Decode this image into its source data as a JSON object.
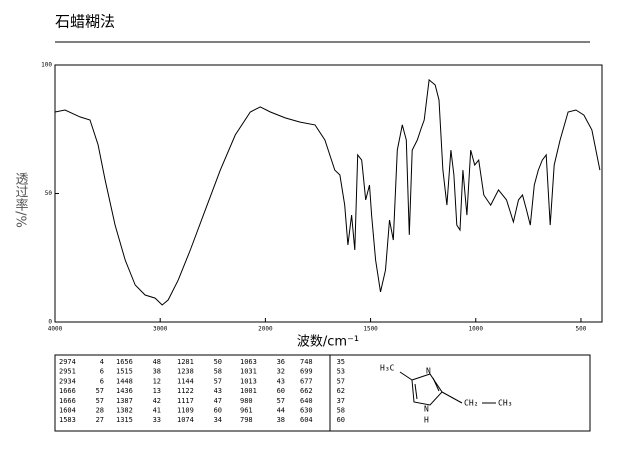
{
  "chart_data": {
    "type": "line",
    "title": "石蜡糊法",
    "x_label": "波数/cm⁻¹",
    "y_label": "透过率/%",
    "x": [
      4000,
      3905,
      3762,
      3667,
      3590,
      3524,
      3429,
      3333,
      3238,
      3143,
      3048,
      2981,
      2924,
      2829,
      2714,
      2571,
      2429,
      2286,
      2143,
      2048,
      1976,
      1906,
      1835,
      1764,
      1717,
      1670,
      1646,
      1623,
      1608,
      1590,
      1575,
      1561,
      1542,
      1523,
      1505,
      1495,
      1476,
      1453,
      1429,
      1410,
      1392,
      1373,
      1349,
      1330,
      1316,
      1302,
      1278,
      1259,
      1245,
      1222,
      1193,
      1175,
      1156,
      1137,
      1118,
      1104,
      1090,
      1075,
      1061,
      1042,
      1024,
      1005,
      986,
      962,
      929,
      892,
      854,
      821,
      797,
      778,
      759,
      741,
      722,
      703,
      684,
      665,
      646,
      627,
      599,
      561,
      524,
      486,
      448,
      410
    ],
    "series": [
      {
        "color": "#000000",
        "values": [
          81.7,
          82.5,
          79.8,
          78.6,
          68.9,
          55.3,
          37.7,
          24.1,
          14.4,
          10.5,
          9.3,
          6.6,
          8.6,
          16.3,
          28,
          43.6,
          59.1,
          72.8,
          81.7,
          83.7,
          81.7,
          79.4,
          77.8,
          76.7,
          70.8,
          59.1,
          57.2,
          45.5,
          30,
          41.6,
          28,
          65,
          63,
          47.5,
          53.3,
          41.6,
          24.1,
          11.7,
          20.2,
          39.7,
          31.9,
          66.9,
          76.7,
          70.8,
          33.9,
          66.9,
          70.8,
          75.5,
          78.6,
          94.2,
          92.2,
          86.4,
          59.1,
          45.5,
          66.9,
          57.2,
          37.7,
          35.8,
          59.1,
          41.6,
          66.9,
          61.1,
          63,
          49.4,
          45.5,
          51.4,
          47.5,
          38.9,
          47.5,
          49.4,
          43.6,
          37.7,
          53.3,
          59.1,
          63,
          65,
          37.7,
          61.1,
          70.8,
          81.7,
          82.5,
          80.5,
          74.7,
          59.1
        ]
      }
    ],
    "xlim": [
      4000,
      400
    ],
    "xticks": [
      4000,
      3000,
      2000,
      1500,
      1000,
      500
    ],
    "ylim": [
      0,
      100
    ],
    "yticks": [
      0,
      50,
      100
    ]
  },
  "peak_table": {
    "rows": [
      [
        2974,
        4,
        1656,
        48,
        1281,
        50,
        1063,
        36,
        748,
        35
      ],
      [
        2951,
        6,
        1515,
        38,
        1238,
        58,
        1031,
        32,
        699,
        53
      ],
      [
        2934,
        6,
        1448,
        12,
        1144,
        57,
        1013,
        43,
        677,
        57
      ],
      [
        1666,
        57,
        1436,
        13,
        1122,
        43,
        1001,
        60,
        662,
        62
      ],
      [
        1666,
        57,
        1387,
        42,
        1117,
        47,
        980,
        57,
        640,
        37
      ],
      [
        1604,
        28,
        1382,
        41,
        1109,
        60,
        961,
        44,
        630,
        58
      ],
      [
        1583,
        27,
        1315,
        33,
        1074,
        34,
        798,
        38,
        604,
        60
      ]
    ]
  },
  "structure": {
    "labels": [
      "H₃C",
      "N",
      "N",
      "H",
      "CH₂",
      "CH₃"
    ]
  }
}
